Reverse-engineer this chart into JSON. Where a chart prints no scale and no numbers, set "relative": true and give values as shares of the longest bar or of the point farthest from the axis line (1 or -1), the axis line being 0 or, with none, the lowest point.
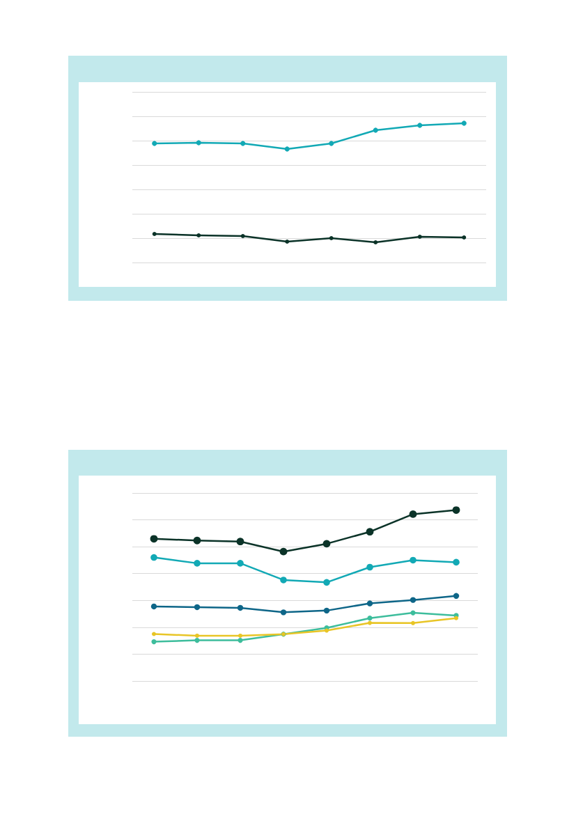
{
  "chart_data": [
    {
      "type": "line",
      "relative": true,
      "grid": "y",
      "marker": "circle",
      "line_style": "solid",
      "categories": [
        null,
        null,
        null,
        null,
        null,
        null,
        null,
        null
      ],
      "series": [
        {
          "color": "#12a9b5",
          "values": [
            0.855,
            0.86,
            0.855,
            0.815,
            0.855,
            0.95,
            0.985,
            1
          ]
        },
        {
          "color": "#0b3328",
          "values": [
            0.205,
            0.195,
            0.19,
            0.15,
            0.175,
            0.145,
            0.185,
            0.18
          ]
        }
      ]
    },
    {
      "type": "line",
      "relative": true,
      "grid": "y",
      "marker": "circle",
      "line_style": "solid",
      "categories": [
        null,
        null,
        null,
        null,
        null,
        null,
        null,
        null
      ],
      "series": [
        {
          "color": "#0b3328",
          "values": [
            0.832,
            0.822,
            0.816,
            0.757,
            0.803,
            0.873,
            0.976,
            1
          ]
        },
        {
          "color": "#12a9b5",
          "values": [
            0.723,
            0.689,
            0.689,
            0.591,
            0.577,
            0.666,
            0.707,
            0.695
          ]
        },
        {
          "color": "#0e6688",
          "values": [
            0.436,
            0.432,
            0.428,
            0.402,
            0.412,
            0.454,
            0.474,
            0.498
          ]
        },
        {
          "color": "#3dbd9c",
          "values": [
            0.23,
            0.238,
            0.238,
            0.274,
            0.311,
            0.368,
            0.399,
            0.383
          ]
        },
        {
          "color": "#e8c526",
          "values": [
            0.275,
            0.265,
            0.265,
            0.274,
            0.295,
            0.34,
            0.339,
            0.368
          ]
        }
      ]
    }
  ]
}
